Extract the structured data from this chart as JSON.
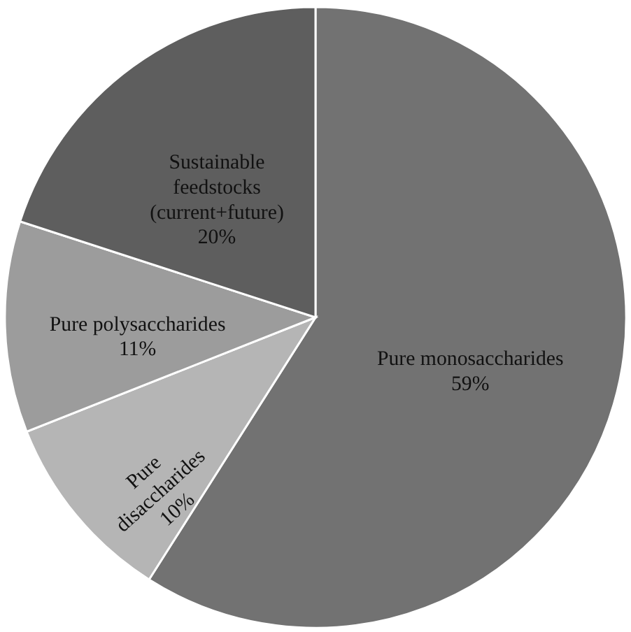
{
  "chart_data": {
    "type": "pie",
    "categories": [
      "Pure monosaccharides",
      "Pure disaccharides",
      "Pure polysaccharides",
      "Sustainable feedstocks (current+future)"
    ],
    "values": [
      59,
      10,
      11,
      20
    ],
    "value_labels": [
      "59%",
      "10%",
      "11%",
      "20%"
    ],
    "colors": [
      "#727272",
      "#b5b5b5",
      "#9c9c9c",
      "#5e5e5e"
    ],
    "legend": false
  }
}
